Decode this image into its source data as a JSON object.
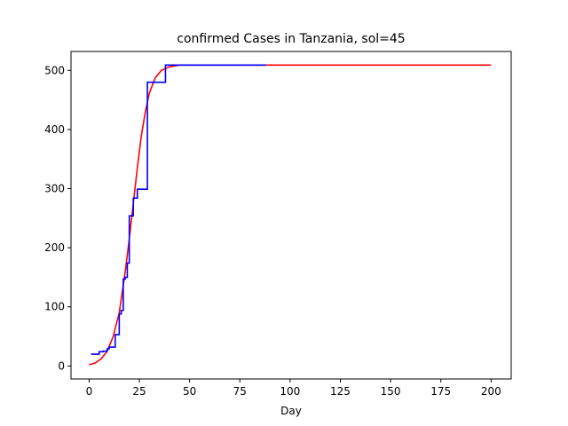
{
  "chart_data": {
    "type": "line",
    "title": "confirmed Cases in Tanzania, sol=45",
    "xlabel": "Day",
    "ylabel": "",
    "xlim": [
      -9,
      210
    ],
    "ylim": [
      -22,
      532
    ],
    "xticks": [
      0,
      25,
      50,
      75,
      100,
      125,
      150,
      175,
      200
    ],
    "yticks": [
      0,
      100,
      200,
      300,
      400,
      500
    ],
    "grid": false,
    "series": [
      {
        "kind": "fitted",
        "color": "#ff0000",
        "step": false,
        "x": [
          0,
          3,
          6,
          9,
          12,
          15,
          18,
          20,
          22,
          24,
          26,
          28,
          30,
          33,
          36,
          40,
          45,
          50,
          60,
          80,
          100,
          150,
          200
        ],
        "y": [
          2,
          5,
          12,
          25,
          50,
          90,
          160,
          215,
          275,
          335,
          390,
          430,
          462,
          488,
          500,
          506,
          509,
          509,
          509,
          509,
          509,
          509,
          509
        ]
      },
      {
        "kind": "observed",
        "color": "#0000ff",
        "step": true,
        "x": [
          1,
          3,
          5,
          7,
          9,
          10,
          12,
          13,
          15,
          16,
          17,
          18,
          19,
          20,
          21,
          22,
          23,
          24,
          25,
          27,
          29,
          30,
          37,
          38,
          88
        ],
        "y": [
          20,
          20,
          24,
          25,
          29,
          32,
          32,
          53,
          88,
          94,
          147,
          150,
          174,
          254,
          254,
          284,
          284,
          299,
          299,
          299,
          480,
          480,
          480,
          509,
          509
        ]
      }
    ]
  }
}
